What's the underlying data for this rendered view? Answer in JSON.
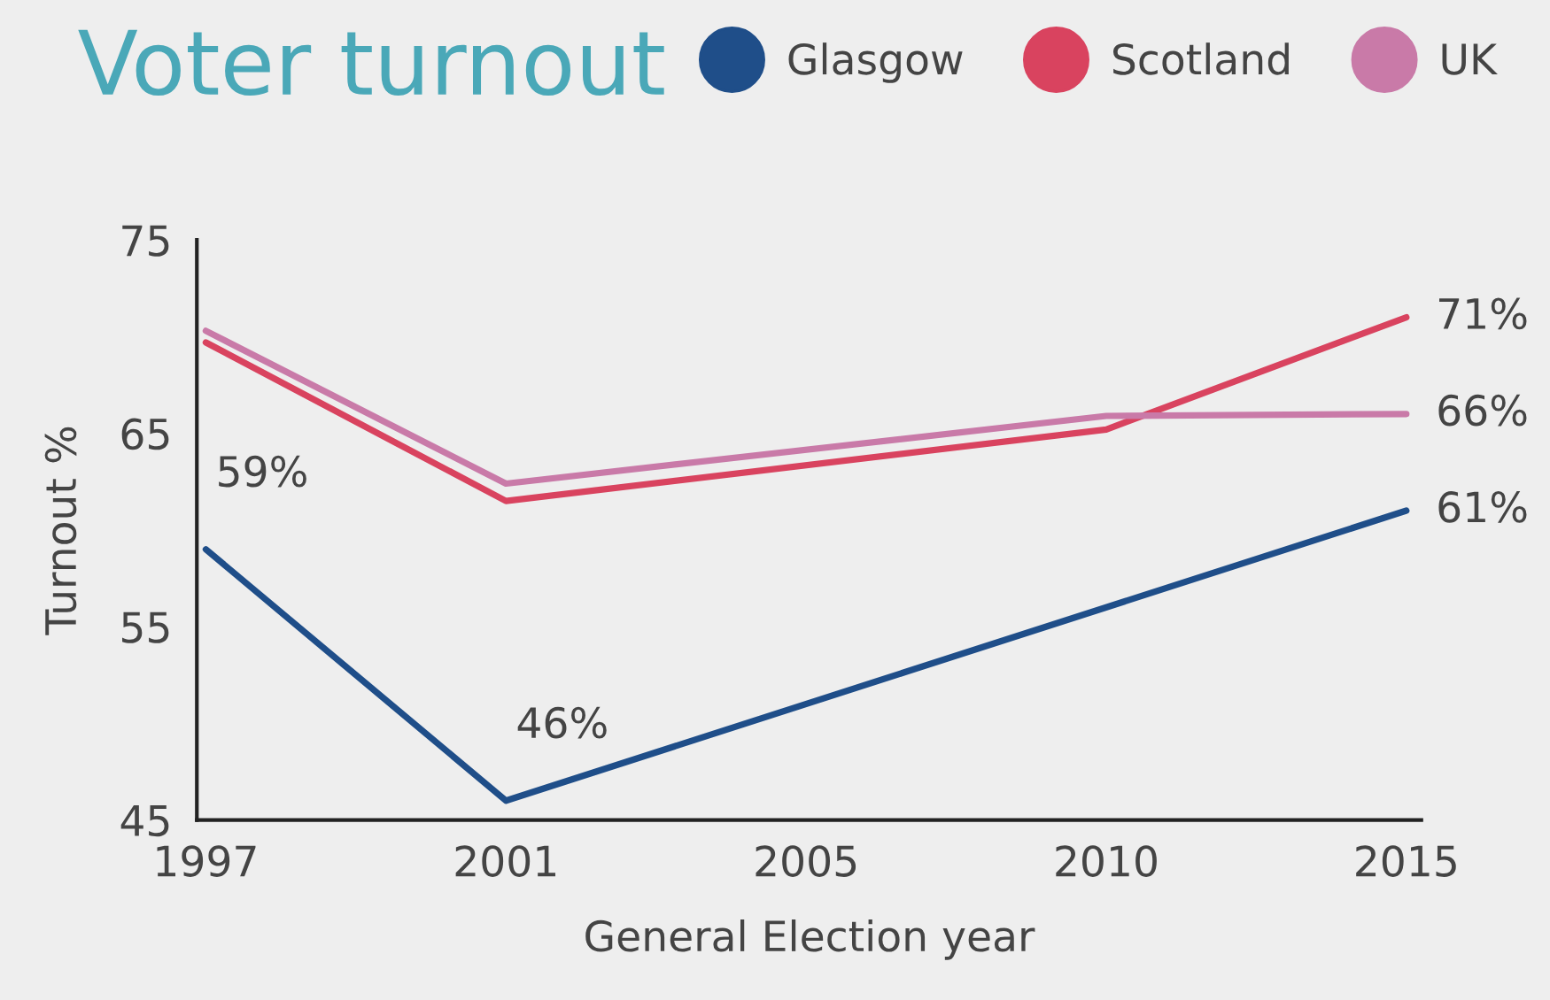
{
  "chart_data": {
    "type": "line",
    "title": "Voter turnout",
    "xlabel": "General Election year",
    "ylabel": "Turnout %",
    "categories": [
      "1997",
      "2001",
      "2005",
      "2010",
      "2015"
    ],
    "series": [
      {
        "name": "Glasgow",
        "color": "#1f4e89",
        "values": [
          59,
          46,
          null,
          null,
          61
        ],
        "value_labels": [
          "59%",
          "46%",
          null,
          null,
          "61%"
        ]
      },
      {
        "name": "Scotland",
        "color": "#d9435f",
        "values": [
          69.7,
          61.5,
          null,
          65.2,
          71
        ],
        "value_labels": [
          null,
          null,
          null,
          null,
          "71%"
        ]
      },
      {
        "name": "UK",
        "color": "#c97aa8",
        "values": [
          70.3,
          62.4,
          null,
          65.9,
          66
        ],
        "value_labels": [
          null,
          null,
          null,
          null,
          "66%"
        ]
      }
    ],
    "ylim": [
      45,
      75
    ],
    "yticks": [
      45,
      55,
      65,
      75
    ],
    "grid": false,
    "legend": "top right",
    "marker": "none",
    "line_style": "solid"
  }
}
